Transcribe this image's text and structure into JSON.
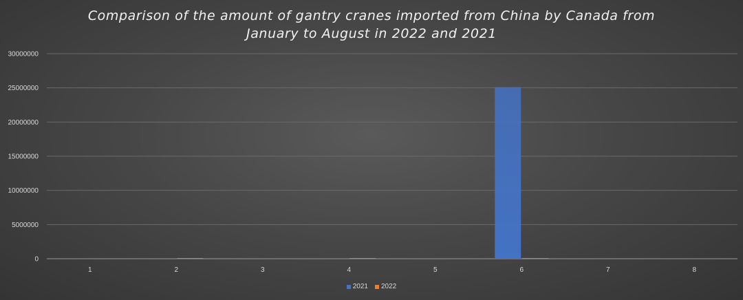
{
  "chart_data": {
    "type": "bar",
    "title_lines": [
      "Comparison of the amount of gantry cranes imported from China by Canada from",
      "January to August in 2022 and 2021"
    ],
    "categories": [
      "1",
      "2",
      "3",
      "4",
      "5",
      "6",
      "7",
      "8"
    ],
    "series": [
      {
        "name": "2021",
        "color": "#4472C4",
        "values": [
          0,
          0,
          0,
          40000,
          15000,
          25100000,
          0,
          0
        ]
      },
      {
        "name": "2022",
        "color": "#ED7D31",
        "values": [
          0,
          60000,
          0,
          50000,
          0,
          80000,
          0,
          0
        ]
      }
    ],
    "ylim": [
      0,
      30000000
    ],
    "yticks": [
      0,
      5000000,
      10000000,
      15000000,
      20000000,
      25000000,
      30000000
    ],
    "grid": true,
    "legend_position": "bottom"
  }
}
